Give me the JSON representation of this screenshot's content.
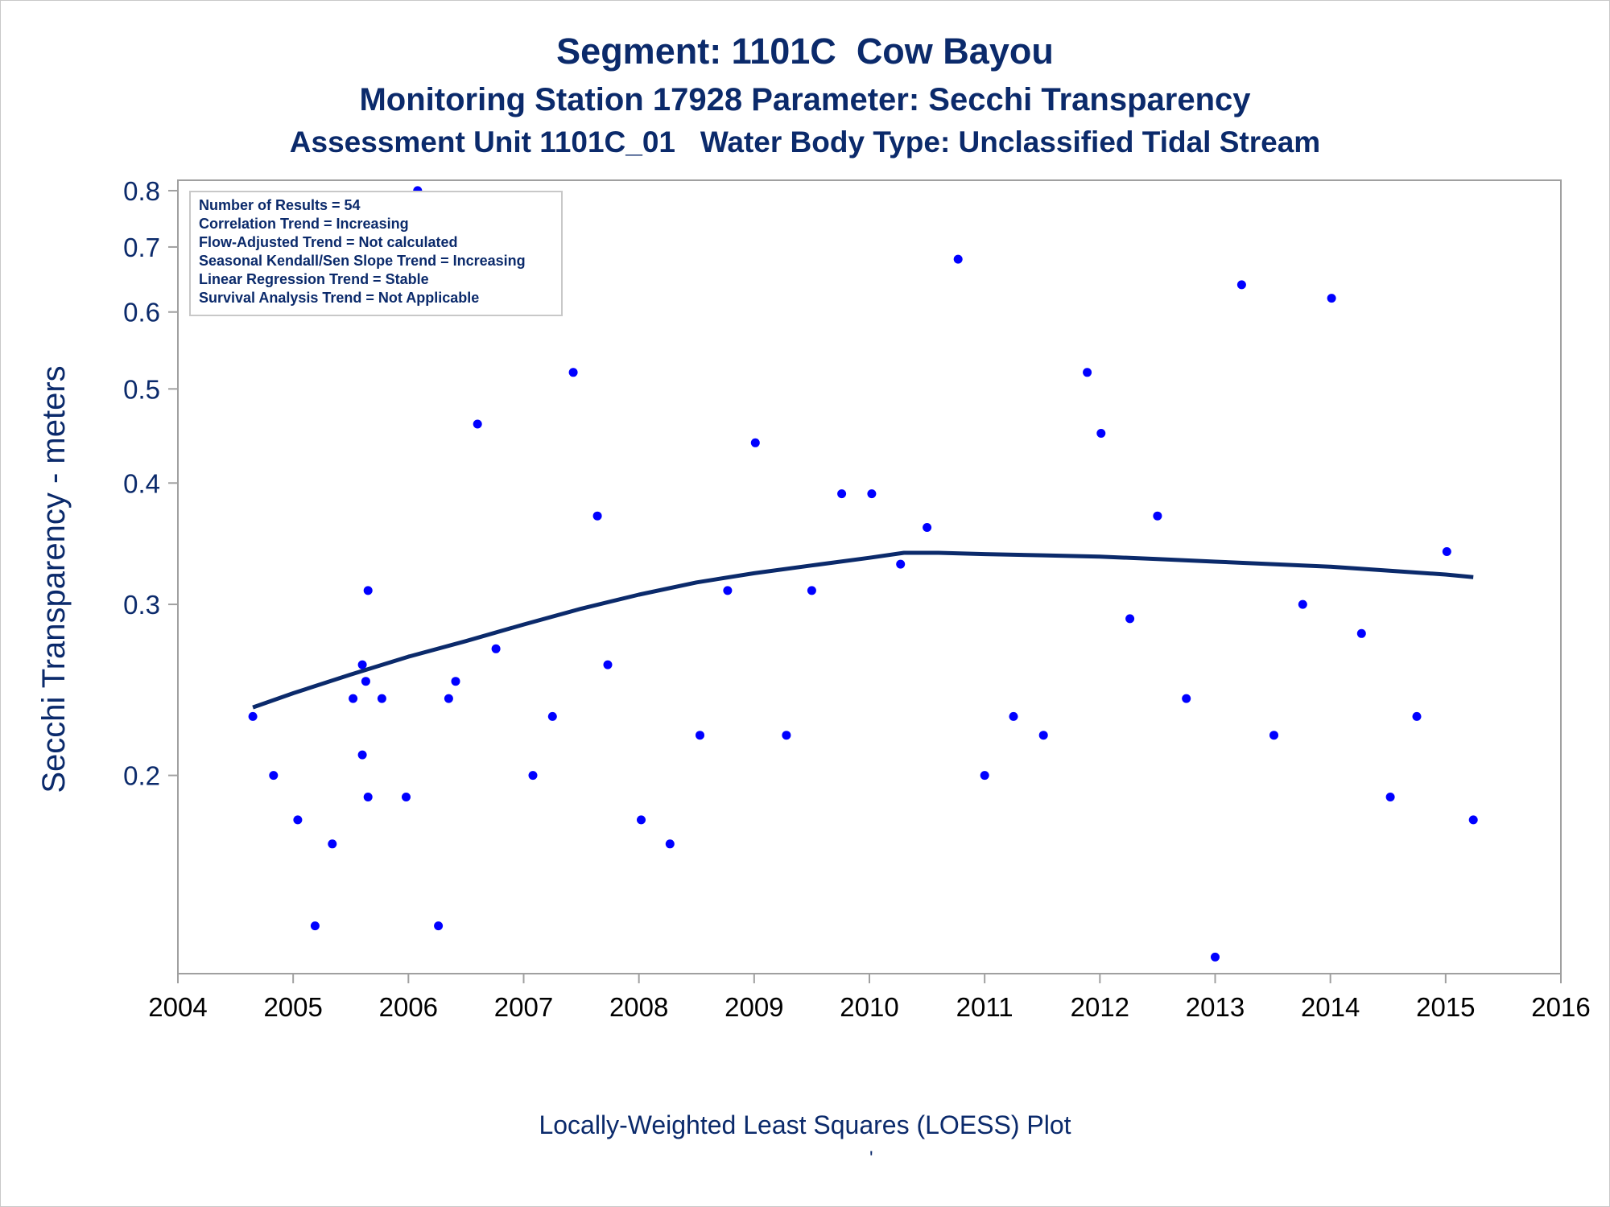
{
  "titles": {
    "line1": "Segment: 1101C  Cow Bayou",
    "line2": "Monitoring Station 17928 Parameter: Secchi Transparency",
    "line3": "Assessment Unit 1101C_01   Water Body Type: Unclassified Tidal Stream"
  },
  "footer": {
    "text": "Locally-Weighted Least Squares (LOESS) Plot",
    "mark": "'"
  },
  "colors": {
    "text": "#0b2a6b",
    "point": "#0000ff",
    "line": "#0b2a6b",
    "axis": "#a0a0a0"
  },
  "chart_data": {
    "type": "scatter",
    "xlabel": "",
    "ylabel": "Secchi Transparency - meters",
    "yscale": "log",
    "xlim": [
      2004,
      2016
    ],
    "ylim": [
      0.125,
      0.82
    ],
    "xticks": [
      2004,
      2005,
      2006,
      2007,
      2008,
      2009,
      2010,
      2011,
      2012,
      2013,
      2014,
      2015,
      2016
    ],
    "xtick_labels": [
      "2004",
      "2005",
      "2006",
      "2007",
      "2008",
      "2009",
      "2010",
      "2011",
      "2012",
      "2013",
      "2014",
      "2015",
      "2016"
    ],
    "yticks": [
      0.2,
      0.3,
      0.4,
      0.5,
      0.6,
      0.7,
      0.8
    ],
    "ytick_labels": [
      "0.2",
      "0.3",
      "0.4",
      "0.5",
      "0.6",
      "0.7",
      "0.8"
    ],
    "grid": false,
    "legend_box": {
      "placement": "top-left",
      "lines": [
        "Number of Results = 54",
        "Correlation Trend = Increasing",
        "Flow-Adjusted Trend = Not calculated",
        "Seasonal Kendall/Sen Slope Trend = Increasing",
        "Linear Regression Trend = Stable",
        "Survival Analysis Trend = Not Applicable"
      ]
    },
    "points": [
      {
        "x": 2004.65,
        "y": 0.23
      },
      {
        "x": 2004.83,
        "y": 0.2
      },
      {
        "x": 2005.04,
        "y": 0.18
      },
      {
        "x": 2005.19,
        "y": 0.14
      },
      {
        "x": 2005.34,
        "y": 0.17
      },
      {
        "x": 2005.52,
        "y": 0.24
      },
      {
        "x": 2005.6,
        "y": 0.26
      },
      {
        "x": 2005.6,
        "y": 0.21
      },
      {
        "x": 2005.63,
        "y": 0.25
      },
      {
        "x": 2005.65,
        "y": 0.31
      },
      {
        "x": 2005.65,
        "y": 0.19
      },
      {
        "x": 2005.77,
        "y": 0.24
      },
      {
        "x": 2005.98,
        "y": 0.19
      },
      {
        "x": 2006.08,
        "y": 0.8
      },
      {
        "x": 2006.26,
        "y": 0.14
      },
      {
        "x": 2006.35,
        "y": 0.24
      },
      {
        "x": 2006.41,
        "y": 0.25
      },
      {
        "x": 2006.6,
        "y": 0.46
      },
      {
        "x": 2006.76,
        "y": 0.27
      },
      {
        "x": 2007.08,
        "y": 0.2
      },
      {
        "x": 2007.25,
        "y": 0.23
      },
      {
        "x": 2007.43,
        "y": 0.52
      },
      {
        "x": 2007.64,
        "y": 0.37
      },
      {
        "x": 2007.73,
        "y": 0.26
      },
      {
        "x": 2008.02,
        "y": 0.18
      },
      {
        "x": 2008.27,
        "y": 0.17
      },
      {
        "x": 2008.53,
        "y": 0.22
      },
      {
        "x": 2008.77,
        "y": 0.31
      },
      {
        "x": 2009.01,
        "y": 0.44
      },
      {
        "x": 2009.28,
        "y": 0.22
      },
      {
        "x": 2009.5,
        "y": 0.31
      },
      {
        "x": 2009.76,
        "y": 0.39
      },
      {
        "x": 2010.02,
        "y": 0.39
      },
      {
        "x": 2010.27,
        "y": 0.33
      },
      {
        "x": 2010.5,
        "y": 0.36
      },
      {
        "x": 2010.77,
        "y": 0.68
      },
      {
        "x": 2011.0,
        "y": 0.2
      },
      {
        "x": 2011.25,
        "y": 0.23
      },
      {
        "x": 2011.51,
        "y": 0.22
      },
      {
        "x": 2011.89,
        "y": 0.52
      },
      {
        "x": 2012.01,
        "y": 0.45
      },
      {
        "x": 2012.26,
        "y": 0.29
      },
      {
        "x": 2012.5,
        "y": 0.37
      },
      {
        "x": 2012.75,
        "y": 0.24
      },
      {
        "x": 2013.0,
        "y": 0.13
      },
      {
        "x": 2013.23,
        "y": 0.64
      },
      {
        "x": 2013.51,
        "y": 0.22
      },
      {
        "x": 2013.76,
        "y": 0.3
      },
      {
        "x": 2014.01,
        "y": 0.62
      },
      {
        "x": 2014.27,
        "y": 0.28
      },
      {
        "x": 2014.52,
        "y": 0.19
      },
      {
        "x": 2014.75,
        "y": 0.23
      },
      {
        "x": 2015.01,
        "y": 0.34
      },
      {
        "x": 2015.24,
        "y": 0.18
      }
    ],
    "loess": [
      {
        "x": 2004.65,
        "y": 0.235
      },
      {
        "x": 2005.0,
        "y": 0.243
      },
      {
        "x": 2005.5,
        "y": 0.254
      },
      {
        "x": 2006.0,
        "y": 0.265
      },
      {
        "x": 2006.5,
        "y": 0.275
      },
      {
        "x": 2007.0,
        "y": 0.286
      },
      {
        "x": 2007.5,
        "y": 0.297
      },
      {
        "x": 2008.0,
        "y": 0.307
      },
      {
        "x": 2008.5,
        "y": 0.316
      },
      {
        "x": 2009.0,
        "y": 0.323
      },
      {
        "x": 2009.5,
        "y": 0.329
      },
      {
        "x": 2010.0,
        "y": 0.335
      },
      {
        "x": 2010.3,
        "y": 0.339
      },
      {
        "x": 2010.6,
        "y": 0.339
      },
      {
        "x": 2011.0,
        "y": 0.338
      },
      {
        "x": 2011.5,
        "y": 0.337
      },
      {
        "x": 2012.0,
        "y": 0.336
      },
      {
        "x": 2012.5,
        "y": 0.334
      },
      {
        "x": 2013.0,
        "y": 0.332
      },
      {
        "x": 2013.5,
        "y": 0.33
      },
      {
        "x": 2014.0,
        "y": 0.328
      },
      {
        "x": 2014.5,
        "y": 0.325
      },
      {
        "x": 2015.0,
        "y": 0.322
      },
      {
        "x": 2015.24,
        "y": 0.32
      }
    ]
  }
}
